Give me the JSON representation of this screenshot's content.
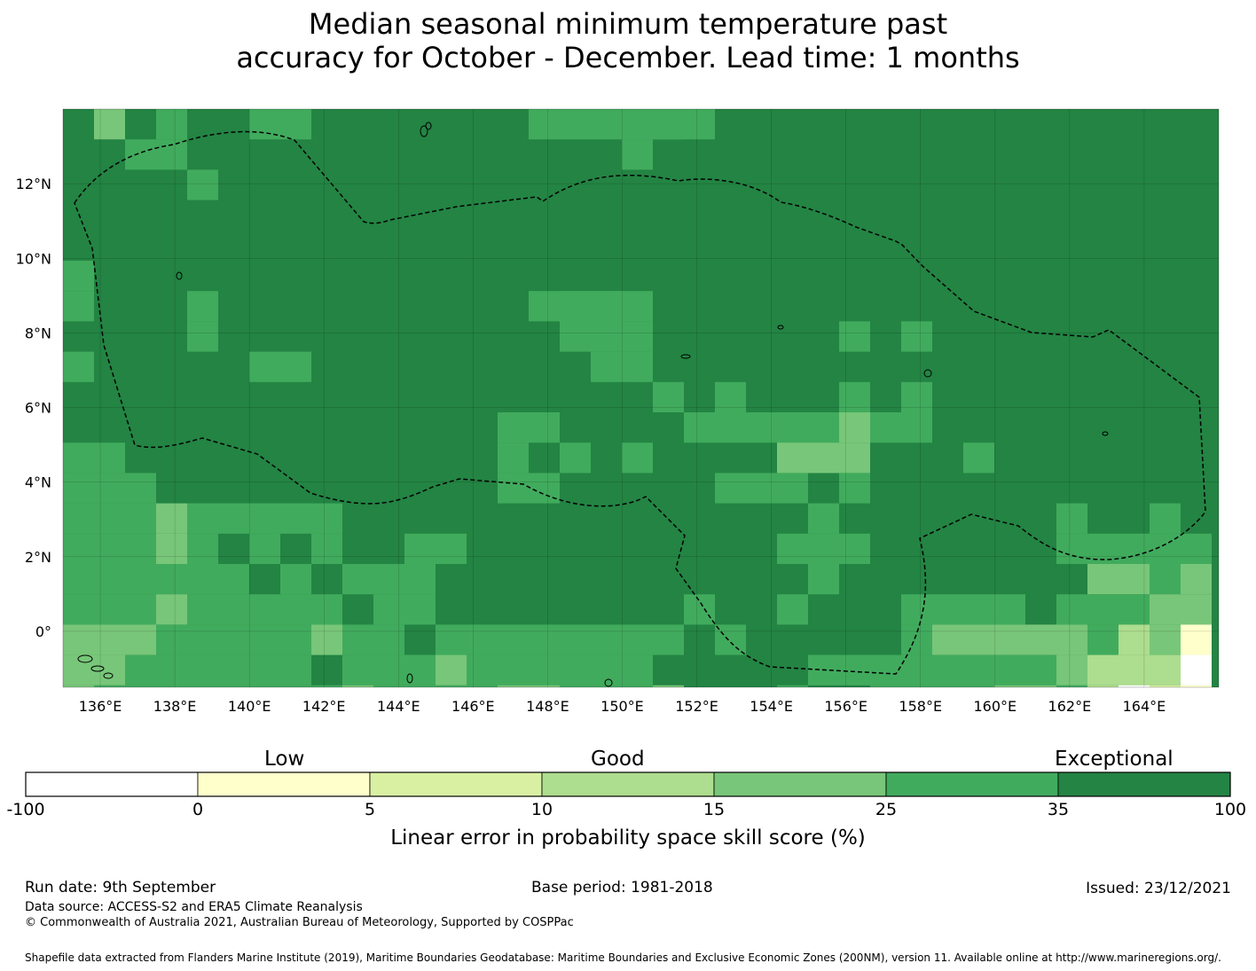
{
  "title": {
    "line1": "Median seasonal minimum temperature past",
    "line2": "accuracy for October - December. Lead time: 1 months"
  },
  "map": {
    "lon_ticks": [
      "136°E",
      "138°E",
      "140°E",
      "142°E",
      "144°E",
      "146°E",
      "148°E",
      "150°E",
      "152°E",
      "154°E",
      "156°E",
      "158°E",
      "160°E",
      "162°E",
      "164°E"
    ],
    "lat_ticks": [
      "12°N",
      "10°N",
      "8°N",
      "6°N",
      "4°N",
      "2°N",
      "0°"
    ],
    "lon_range": [
      135,
      166
    ],
    "lat_range": [
      -1.5,
      14
    ],
    "gridlines": true,
    "eez_boundary": "dashed"
  },
  "colorbar": {
    "category_labels": [
      "Low",
      "Good",
      "Exceptional"
    ],
    "bounds": [
      "-100",
      "0",
      "5",
      "10",
      "15",
      "25",
      "35",
      "100"
    ],
    "colors": [
      "#ffffff",
      "#ffffcc",
      "#d9f0a3",
      "#addd8e",
      "#78c679",
      "#41ab5d",
      "#238443"
    ],
    "title": "Linear error in probability space skill score (%)"
  },
  "footer": {
    "run_date": "Run date: 9th September",
    "base_period": "Base period: 1981-2018",
    "issued": "Issued: 23/12/2021",
    "data_source": "Data source: ACCESS-S2 and ERA5 Climate Reanalysis",
    "copyright": "© Commonwealth of Australia 2021, Australian Bureau of Meteorology, Supported by COSPPac",
    "shapefile": "Shapefile data extracted from Flanders Marine Institute (2019), Maritime Boundaries Geodatabase: Maritime Boundaries and Exclusive Economic Zones (200NM), version 11. Available online at http://www.marineregions.org/."
  }
}
